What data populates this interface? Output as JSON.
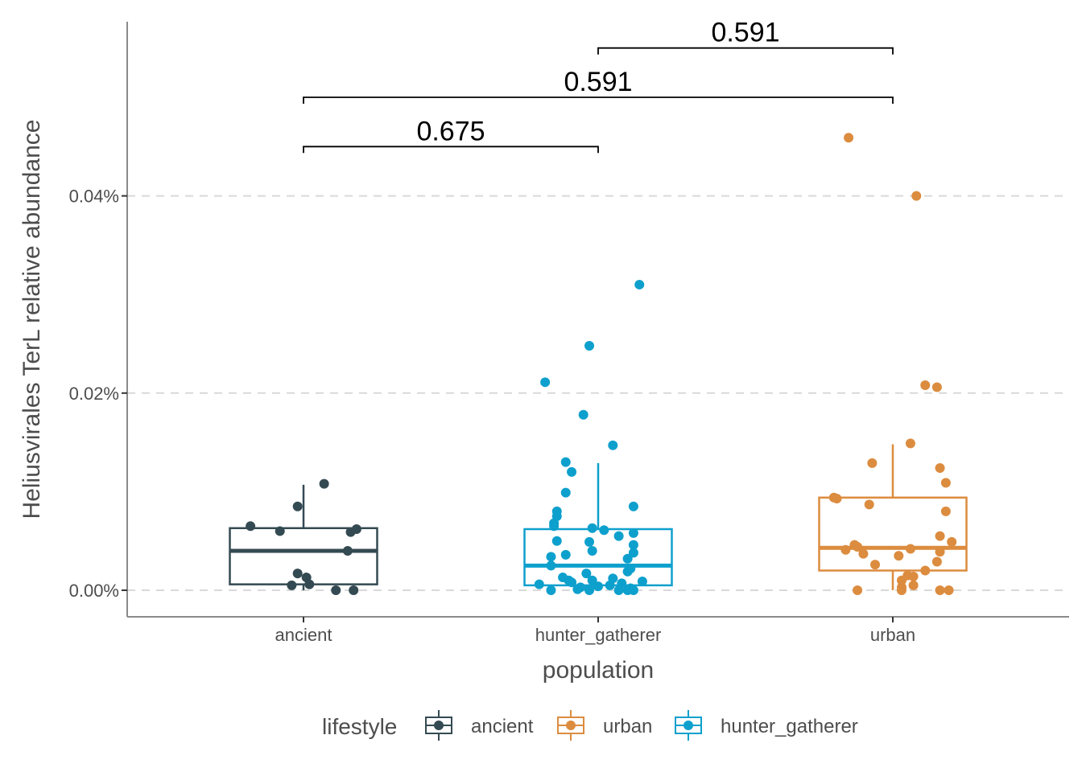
{
  "chart_data": {
    "type": "box",
    "title": "",
    "xlabel": "population",
    "ylabel": "Heliusvirales TerL relative abundance",
    "categories": [
      "ancient",
      "hunter_gatherer",
      "urban"
    ],
    "yticks": [
      {
        "value": 0.0,
        "label": "0.00%"
      },
      {
        "value": 0.02,
        "label": "0.02%"
      },
      {
        "value": 0.04,
        "label": "0.04%"
      }
    ],
    "ylim": [
      -0.0027,
      0.0578
    ],
    "grid": "horizontal dashed at major ticks",
    "legend": {
      "title": "lifestyle",
      "position": "bottom",
      "entries": [
        {
          "label": "ancient",
          "color": "#344A52"
        },
        {
          "label": "urban",
          "color": "#DC8C3F"
        },
        {
          "label": "hunter_gatherer",
          "color": "#0EA0CD"
        }
      ]
    },
    "boxes": [
      {
        "category": "ancient",
        "color": "#344A52",
        "whisker_low": 0.0,
        "q1": 0.0006,
        "median": 0.004,
        "q3": 0.0063,
        "whisker_high": 0.0107
      },
      {
        "category": "hunter_gatherer",
        "color": "#0EA0CD",
        "whisker_low": 0.0,
        "q1": 0.0005,
        "median": 0.0025,
        "q3": 0.0062,
        "whisker_high": 0.0129
      },
      {
        "category": "urban",
        "color": "#DC8C3F",
        "whisker_low": 0.0,
        "q1": 0.002,
        "median": 0.0043,
        "q3": 0.0094,
        "whisker_high": 0.0148
      }
    ],
    "points": [
      {
        "category": "ancient",
        "color": "#344A52",
        "y": [
          0.0108,
          0.0085,
          0.0065,
          0.006,
          0.0059,
          0.0062,
          0.004,
          0.0017,
          0.0013,
          0.0005,
          0.0006,
          0.0,
          0.0
        ],
        "jitter": [
          0.07,
          -0.02,
          -0.18,
          -0.08,
          0.16,
          0.18,
          0.15,
          -0.02,
          0.01,
          -0.04,
          0.02,
          0.11,
          0.17
        ]
      },
      {
        "category": "hunter_gatherer",
        "color": "#0EA0CD",
        "y": [
          0.031,
          0.0248,
          0.0211,
          0.0178,
          0.0147,
          0.013,
          0.012,
          0.0099,
          0.0085,
          0.008,
          0.0075,
          0.0068,
          0.0065,
          0.0063,
          0.0061,
          0.0058,
          0.0055,
          0.005,
          0.0049,
          0.0046,
          0.004,
          0.0038,
          0.0036,
          0.0034,
          0.0032,
          0.0025,
          0.0022,
          0.0019,
          0.0017,
          0.0013,
          0.0012,
          0.001,
          0.001,
          0.0009,
          0.0008,
          0.0007,
          0.0006,
          0.0005,
          0.0004,
          0.0003,
          0.0002,
          0.0001,
          0.0001,
          0.0,
          0.0,
          0.0,
          0.0,
          0.0
        ],
        "jitter": [
          0.14,
          -0.03,
          -0.18,
          -0.05,
          0.05,
          -0.11,
          -0.09,
          -0.11,
          0.12,
          -0.14,
          -0.14,
          -0.15,
          -0.15,
          -0.02,
          0.02,
          0.12,
          0.07,
          -0.14,
          -0.03,
          0.12,
          -0.02,
          0.12,
          -0.11,
          -0.16,
          0.1,
          -0.16,
          0.11,
          0.1,
          -0.04,
          -0.12,
          0.05,
          -0.1,
          -0.02,
          0.15,
          -0.09,
          0.08,
          -0.2,
          0.04,
          0.0,
          -0.06,
          0.11,
          -0.07,
          -0.03,
          -0.16,
          -0.03,
          0.07,
          0.1,
          0.12
        ]
      },
      {
        "category": "urban",
        "color": "#DC8C3F",
        "y": [
          0.0459,
          0.04,
          0.0208,
          0.0206,
          0.0149,
          0.0129,
          0.0124,
          0.0109,
          0.0094,
          0.0093,
          0.0087,
          0.008,
          0.0055,
          0.0049,
          0.0046,
          0.0044,
          0.0042,
          0.0041,
          0.0039,
          0.0037,
          0.0035,
          0.0029,
          0.0026,
          0.002,
          0.0015,
          0.0014,
          0.001,
          0.0005,
          0.0003,
          0.0,
          0.0,
          0.0,
          0.0
        ],
        "jitter": [
          -0.15,
          0.08,
          0.11,
          0.15,
          0.06,
          -0.07,
          0.16,
          0.18,
          -0.2,
          -0.19,
          -0.08,
          0.18,
          0.16,
          0.2,
          -0.13,
          -0.12,
          0.06,
          -0.16,
          0.16,
          -0.1,
          0.02,
          0.15,
          -0.06,
          0.11,
          0.05,
          0.07,
          0.03,
          0.07,
          0.03,
          -0.12,
          0.16,
          0.19,
          0.03
        ]
      }
    ],
    "comparisons": [
      {
        "from": "ancient",
        "to": "hunter_gatherer",
        "label": "0.675",
        "y": 0.045
      },
      {
        "from": "ancient",
        "to": "urban",
        "label": "0.591",
        "y": 0.05
      },
      {
        "from": "hunter_gatherer",
        "to": "urban",
        "label": "0.591",
        "y": 0.055
      }
    ]
  }
}
